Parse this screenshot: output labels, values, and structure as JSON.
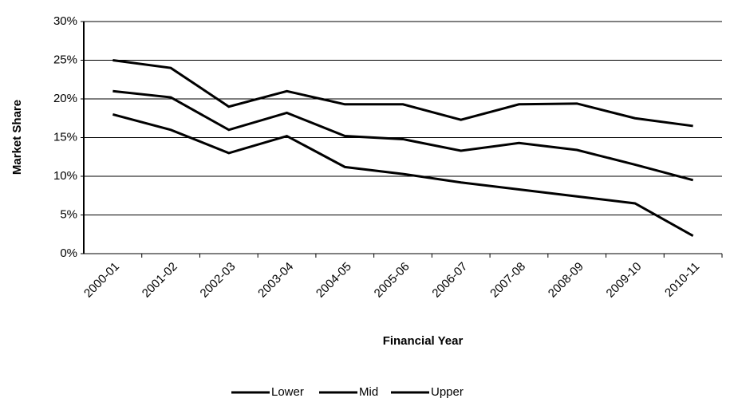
{
  "chart_data": {
    "type": "line",
    "x_label": "Financial Year",
    "y_label": "Market Share",
    "categories": [
      "2000-01",
      "2001-02",
      "2002-03",
      "2003-04",
      "2004-05",
      "2005-06",
      "2006-07",
      "2007-08",
      "2008-09",
      "2009-10",
      "2010-11"
    ],
    "series": [
      {
        "name": "Lower",
        "color": "#000000",
        "values": [
          18,
          16,
          13,
          15.2,
          11.2,
          10.3,
          9.2,
          8.3,
          7.4,
          6.5,
          2.3
        ]
      },
      {
        "name": "Mid",
        "color": "#000000",
        "values": [
          21,
          20.2,
          16,
          18.2,
          15.2,
          14.8,
          13.3,
          14.3,
          13.4,
          11.5,
          9.5
        ]
      },
      {
        "name": "Upper",
        "color": "#000000",
        "values": [
          25,
          24,
          19,
          21,
          19.3,
          19.3,
          17.3,
          19.3,
          19.4,
          17.5,
          16.5
        ]
      }
    ],
    "ylim": [
      0,
      30
    ],
    "yticks": [
      {
        "value": 0,
        "label": "0%"
      },
      {
        "value": 5,
        "label": "5%"
      },
      {
        "value": 10,
        "label": "10%"
      },
      {
        "value": 15,
        "label": "15%"
      },
      {
        "value": 20,
        "label": "20%"
      },
      {
        "value": 25,
        "label": "25%"
      },
      {
        "value": 30,
        "label": "30%"
      }
    ],
    "grid": true,
    "legend": "bottom"
  }
}
